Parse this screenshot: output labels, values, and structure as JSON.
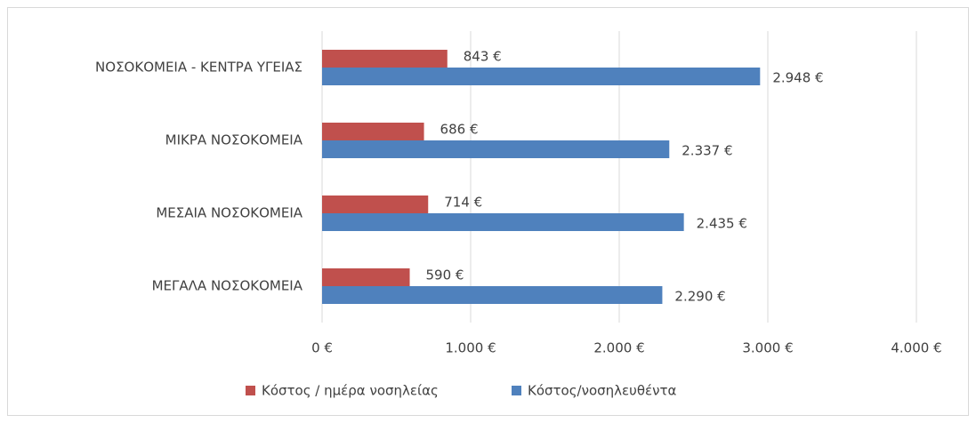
{
  "chart_data": {
    "type": "bar",
    "orientation": "horizontal",
    "categories": [
      "ΝΟΣΟΚΟΜΕΙΑ - ΚΕΝΤΡΑ ΥΓΕΙΑΣ",
      "ΜΙΚΡΑ ΝΟΣΟΚΟΜΕΙΑ",
      "ΜΕΣΑΙΑ ΝΟΣΟΚΟΜΕΙΑ",
      "ΜΕΓΑΛΑ ΝΟΣΟΚΟΜΕΙΑ"
    ],
    "series": [
      {
        "name": "Κόστος / ημέρα νοσηλείας",
        "color": "#c0504d",
        "values": [
          843,
          686,
          714,
          590
        ],
        "value_labels": [
          "843 €",
          "686 €",
          "714 €",
          "590 €"
        ]
      },
      {
        "name": "Κόστος/νοσηλευθέντα",
        "color": "#4f81bd",
        "values": [
          2948,
          2337,
          2435,
          2290
        ],
        "value_labels": [
          "2.948 €",
          "2.337 €",
          "2.435 €",
          "2.290 €"
        ]
      }
    ],
    "xlim": [
      0,
      4000
    ],
    "xticks": [
      {
        "value": 0,
        "label": "0 €"
      },
      {
        "value": 1000,
        "label": "1.000 €"
      },
      {
        "value": 2000,
        "label": "2.000 €"
      },
      {
        "value": 3000,
        "label": "3.000 €"
      },
      {
        "value": 4000,
        "label": "4.000 €"
      }
    ],
    "grid": true,
    "legend": "bottom"
  }
}
